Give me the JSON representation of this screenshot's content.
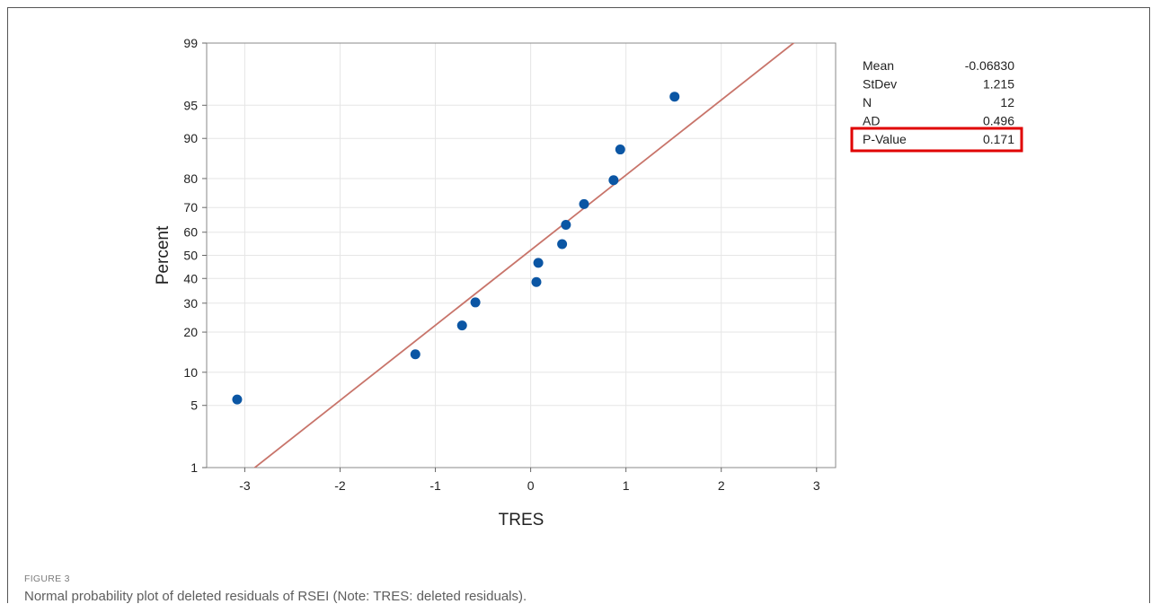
{
  "figure": {
    "label": "FIGURE 3",
    "caption": "Normal probability plot of deleted residuals of RSEI (Note: TRES: deleted residuals)."
  },
  "chart_data": {
    "type": "scatter",
    "title": "",
    "xlabel": "TRES",
    "ylabel": "Percent",
    "y_scale": "normal-probability",
    "xlim": [
      -3.4,
      3.2
    ],
    "ylim": [
      1,
      99
    ],
    "x_ticks": [
      -3,
      -2,
      -1,
      0,
      1,
      2,
      3
    ],
    "y_ticks": [
      1,
      5,
      10,
      20,
      30,
      40,
      50,
      60,
      70,
      80,
      90,
      95,
      99
    ],
    "grid": true,
    "colors": {
      "points": "#0b56a4",
      "fit_line": "#c8746a",
      "highlight_box": "#e00000"
    },
    "points": [
      {
        "x": -3.08,
        "y": 5.7
      },
      {
        "x": -1.21,
        "y": 13.9
      },
      {
        "x": -0.72,
        "y": 22.1
      },
      {
        "x": -0.58,
        "y": 30.3
      },
      {
        "x": 0.06,
        "y": 38.5
      },
      {
        "x": 0.08,
        "y": 46.7
      },
      {
        "x": 0.33,
        "y": 54.9
      },
      {
        "x": 0.37,
        "y": 63.1
      },
      {
        "x": 0.56,
        "y": 71.3
      },
      {
        "x": 0.87,
        "y": 79.5
      },
      {
        "x": 0.94,
        "y": 87.7
      },
      {
        "x": 1.51,
        "y": 95.9
      }
    ],
    "fit_line": {
      "mean": -0.0683,
      "stdev": 1.215
    },
    "stats": [
      {
        "label": "Mean",
        "value": "-0.06830",
        "highlighted": false
      },
      {
        "label": "StDev",
        "value": "1.215",
        "highlighted": false
      },
      {
        "label": "N",
        "value": "12",
        "highlighted": false
      },
      {
        "label": "AD",
        "value": "0.496",
        "highlighted": false
      },
      {
        "label": "P-Value",
        "value": "0.171",
        "highlighted": true
      }
    ]
  }
}
